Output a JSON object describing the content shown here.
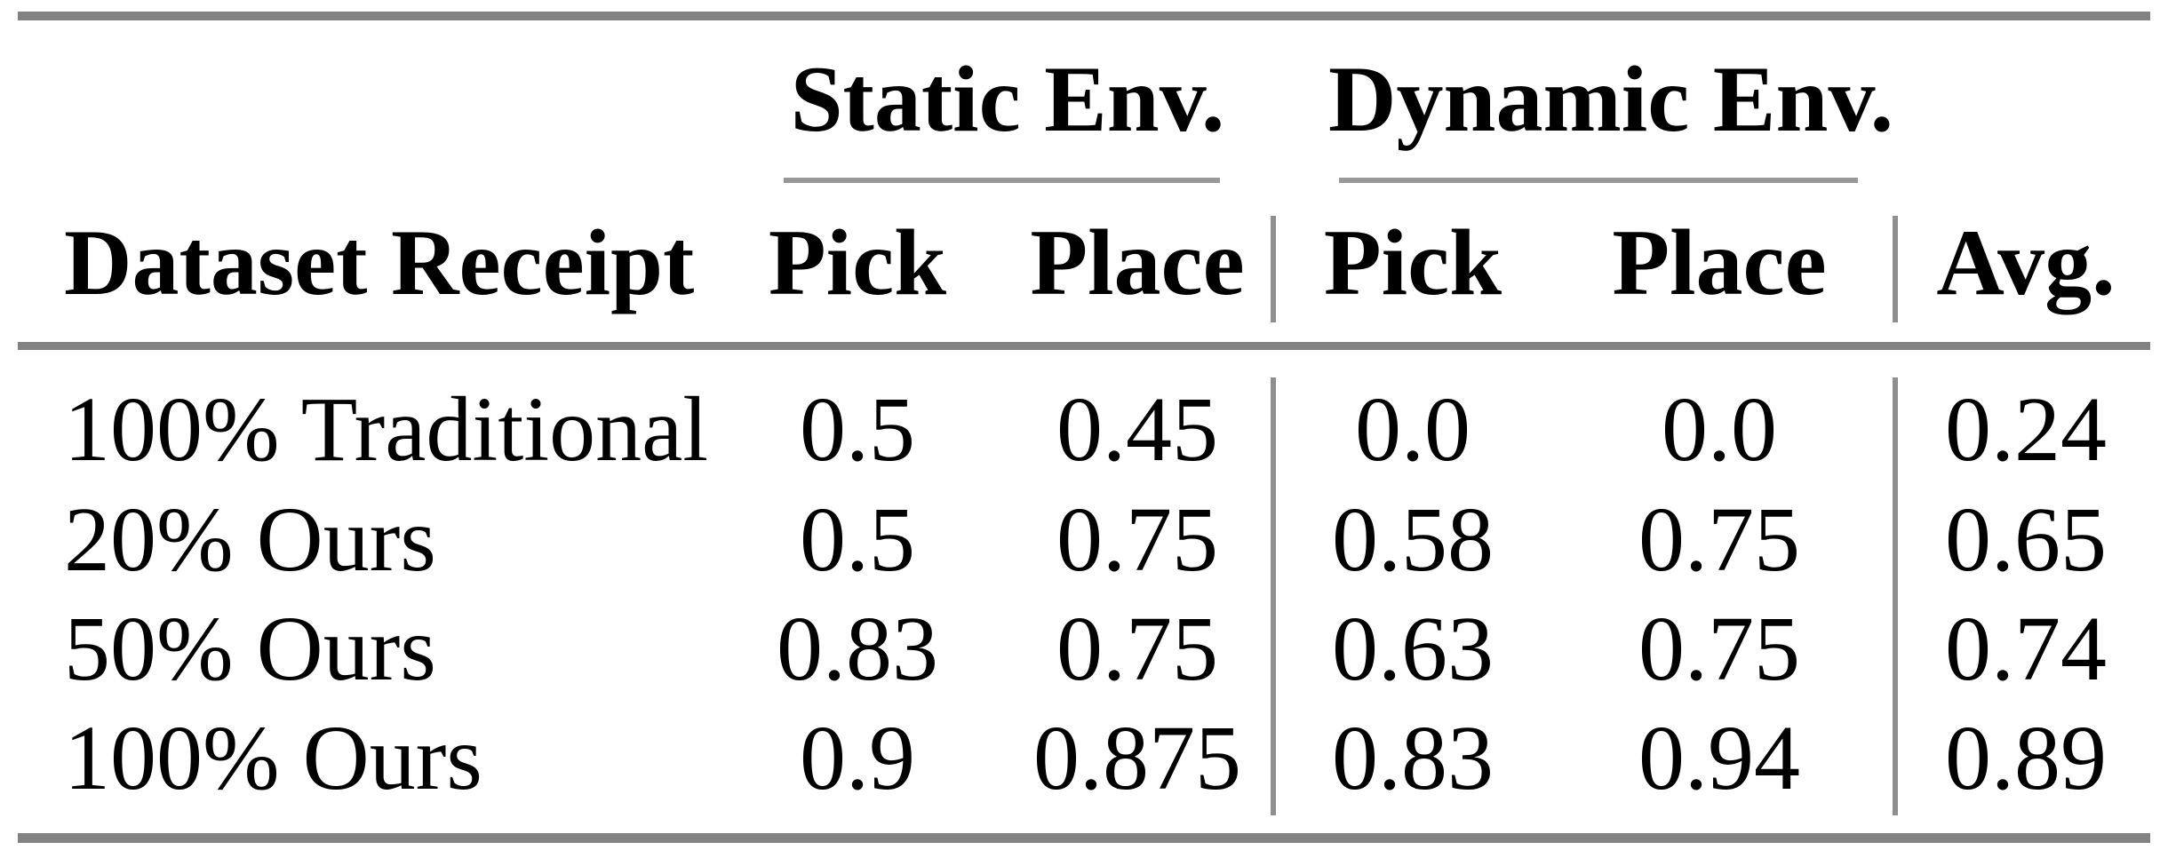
{
  "colors": {
    "rule_thick": "#838383",
    "rule_thin": "#989898",
    "rule_vline": "#8f8f8f",
    "text": "#000000",
    "background": "#ffffff"
  },
  "table": {
    "groups": {
      "static": "Static Env.",
      "dynamic": "Dynamic Env."
    },
    "columns": {
      "dataset": "Dataset Receipt",
      "pick": "Pick",
      "place": "Place",
      "avg": "Avg."
    },
    "rows": [
      {
        "dataset": "100% Traditional",
        "static_pick": "0.5",
        "static_place": "0.45",
        "dynamic_pick": "0.0",
        "dynamic_place": "0.0",
        "avg": "0.24"
      },
      {
        "dataset": "20% Ours",
        "static_pick": "0.5",
        "static_place": "0.75",
        "dynamic_pick": "0.58",
        "dynamic_place": "0.75",
        "avg": "0.65"
      },
      {
        "dataset": "50% Ours",
        "static_pick": "0.83",
        "static_place": "0.75",
        "dynamic_pick": "0.63",
        "dynamic_place": "0.75",
        "avg": "0.74"
      },
      {
        "dataset": "100% Ours",
        "static_pick": "0.9",
        "static_place": "0.875",
        "dynamic_pick": "0.83",
        "dynamic_place": "0.94",
        "avg": "0.89"
      }
    ]
  },
  "chart_data": {
    "type": "table",
    "column_groups": [
      {
        "label": "",
        "span": 1
      },
      {
        "label": "Static Env.",
        "span": 2
      },
      {
        "label": "Dynamic Env.",
        "span": 2
      },
      {
        "label": "",
        "span": 1
      }
    ],
    "columns": [
      "Dataset Receipt",
      "Pick",
      "Place",
      "Pick",
      "Place",
      "Avg."
    ],
    "rows": [
      [
        "100% Traditional",
        0.5,
        0.45,
        0.0,
        0.0,
        0.24
      ],
      [
        "20% Ours",
        0.5,
        0.75,
        0.58,
        0.75,
        0.65
      ],
      [
        "50% Ours",
        0.83,
        0.75,
        0.63,
        0.75,
        0.74
      ],
      [
        "100% Ours",
        0.9,
        0.875,
        0.83,
        0.94,
        0.89
      ]
    ]
  }
}
